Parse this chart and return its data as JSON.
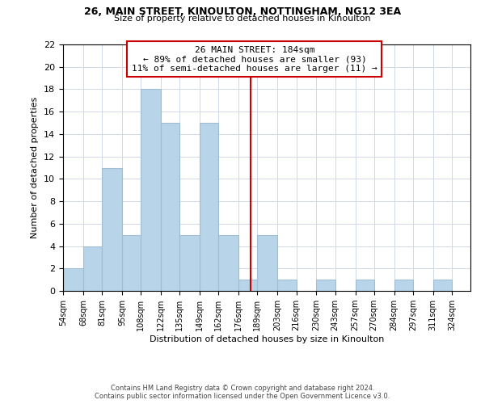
{
  "title1": "26, MAIN STREET, KINOULTON, NOTTINGHAM, NG12 3EA",
  "title2": "Size of property relative to detached houses in Kinoulton",
  "xlabel": "Distribution of detached houses by size in Kinoulton",
  "ylabel": "Number of detached properties",
  "bin_labels": [
    "54sqm",
    "68sqm",
    "81sqm",
    "95sqm",
    "108sqm",
    "122sqm",
    "135sqm",
    "149sqm",
    "162sqm",
    "176sqm",
    "189sqm",
    "203sqm",
    "216sqm",
    "230sqm",
    "243sqm",
    "257sqm",
    "270sqm",
    "284sqm",
    "297sqm",
    "311sqm",
    "324sqm"
  ],
  "bin_edges": [
    54,
    68,
    81,
    95,
    108,
    122,
    135,
    149,
    162,
    176,
    189,
    203,
    216,
    230,
    243,
    257,
    270,
    284,
    297,
    311,
    324
  ],
  "counts": [
    2,
    4,
    11,
    5,
    18,
    15,
    5,
    15,
    5,
    1,
    5,
    1,
    0,
    1,
    0,
    1,
    0,
    1,
    0,
    1
  ],
  "bar_color": "#b8d4e8",
  "bar_edgecolor": "#a0bdd4",
  "vline_x": 184,
  "vline_color": "#cc0000",
  "annotation_title": "26 MAIN STREET: 184sqm",
  "annotation_line1": "← 89% of detached houses are smaller (93)",
  "annotation_line2": "11% of semi-detached houses are larger (11) →",
  "annotation_box_edgecolor": "#cc0000",
  "ylim": [
    0,
    22
  ],
  "yticks": [
    0,
    2,
    4,
    6,
    8,
    10,
    12,
    14,
    16,
    18,
    20,
    22
  ],
  "footnote1": "Contains HM Land Registry data © Crown copyright and database right 2024.",
  "footnote2": "Contains public sector information licensed under the Open Government Licence v3.0.",
  "background_color": "#ffffff",
  "grid_color": "#d0d8e8"
}
